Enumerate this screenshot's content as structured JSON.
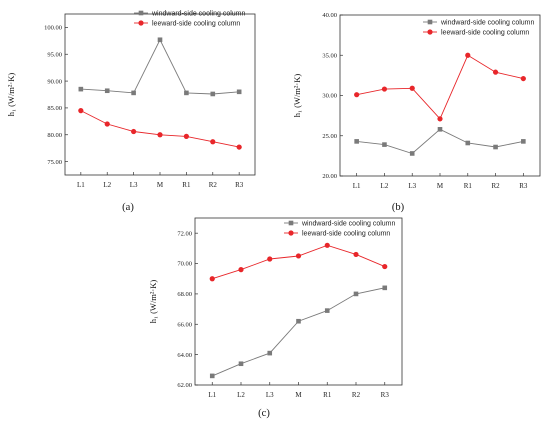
{
  "colors": {
    "windward": "#7a7a7a",
    "leeward": "#e8262a",
    "axis": "#333333"
  },
  "chart_data": [
    {
      "type": "line",
      "caption": "(a)",
      "ylabel": "h₁ (W/m²·K)",
      "categories": [
        "L1",
        "L2",
        "L3",
        "M",
        "R1",
        "R2",
        "R3"
      ],
      "ylim": [
        72.5,
        102.5
      ],
      "yticks": [
        "75.00",
        "80.00",
        "85.00",
        "90.00",
        "95.00",
        "100.00"
      ],
      "legend_position": "top-right",
      "series": [
        {
          "name": "windward-side cooling column",
          "marker": "square",
          "values": [
            88.5,
            88.2,
            87.8,
            97.7,
            87.8,
            87.6,
            88.0
          ]
        },
        {
          "name": "leeward-side cooling column",
          "marker": "circle",
          "values": [
            84.5,
            82.0,
            80.6,
            80.0,
            79.7,
            78.7,
            77.7
          ]
        }
      ]
    },
    {
      "type": "line",
      "caption": "(b)",
      "ylabel": "h₁ (W/m²·K)",
      "categories": [
        "L1",
        "L2",
        "L3",
        "M",
        "R1",
        "R2",
        "R3"
      ],
      "ylim": [
        20,
        40
      ],
      "yticks": [
        "20.00",
        "25.00",
        "30.00",
        "35.00",
        "40.00"
      ],
      "legend_position": "top-right",
      "series": [
        {
          "name": "windward-side cooling column",
          "marker": "square",
          "values": [
            24.3,
            23.9,
            22.8,
            25.8,
            24.1,
            23.6,
            24.3
          ]
        },
        {
          "name": "leeward-side cooling column",
          "marker": "circle",
          "values": [
            30.1,
            30.8,
            30.9,
            27.1,
            35.0,
            32.9,
            32.1
          ]
        }
      ]
    },
    {
      "type": "line",
      "caption": "(c)",
      "ylabel": "h₁ (W/m²·K)",
      "categories": [
        "L1",
        "L2",
        "L3",
        "M",
        "R1",
        "R2",
        "R3"
      ],
      "ylim": [
        62,
        73
      ],
      "yticks": [
        "62.00",
        "64.00",
        "66.00",
        "68.00",
        "70.00",
        "72.00"
      ],
      "legend_position": "top-right",
      "series": [
        {
          "name": "windward-side cooling column",
          "marker": "square",
          "values": [
            62.6,
            63.4,
            64.1,
            66.2,
            66.9,
            68.0,
            68.4
          ]
        },
        {
          "name": "leeward-side cooling column",
          "marker": "circle",
          "values": [
            69.0,
            69.6,
            70.3,
            70.5,
            71.2,
            70.6,
            69.8
          ]
        }
      ]
    }
  ]
}
